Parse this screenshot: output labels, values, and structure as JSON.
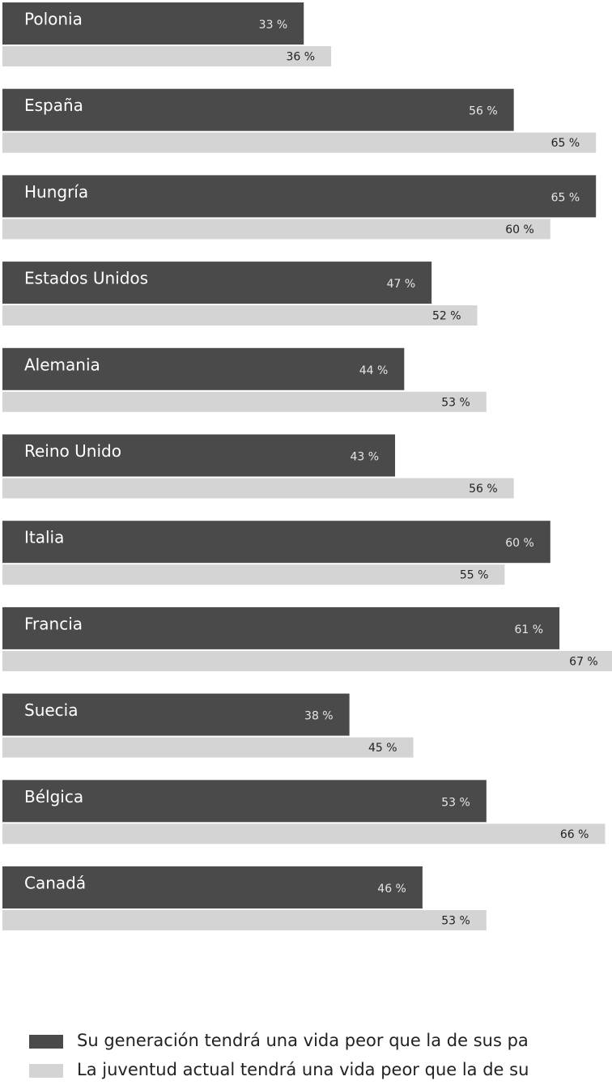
{
  "chart_data": {
    "type": "bar",
    "orientation": "horizontal",
    "categories": [
      "Polonia",
      "España",
      "Hungría",
      "Estados Unidos",
      "Alemania",
      "Reino Unido",
      "Italia",
      "Francia",
      "Suecia",
      "Bélgica",
      "Canadá"
    ],
    "series": [
      {
        "name": "Su generación tendrá una vida peor que la de sus pa",
        "color": "#4a4a4a",
        "values": [
          33,
          56,
          65,
          47,
          44,
          43,
          60,
          61,
          38,
          53,
          46
        ],
        "value_labels": [
          "33 %",
          "56 %",
          "65 %",
          "47 %",
          "44 %",
          "43 %",
          "60 %",
          "61 %",
          "38 %",
          "53 %",
          "46 %"
        ]
      },
      {
        "name": "La juventud actual tendrá una vida peor que la de su",
        "color": "#d4d4d4",
        "values": [
          36,
          65,
          60,
          52,
          53,
          56,
          55,
          67,
          45,
          66,
          53
        ],
        "value_labels": [
          "36 %",
          "65 %",
          "60 %",
          "52 %",
          "53 %",
          "56 %",
          "55 %",
          "67 %",
          "45 %",
          "66 %",
          "53 %"
        ]
      }
    ]
  }
}
